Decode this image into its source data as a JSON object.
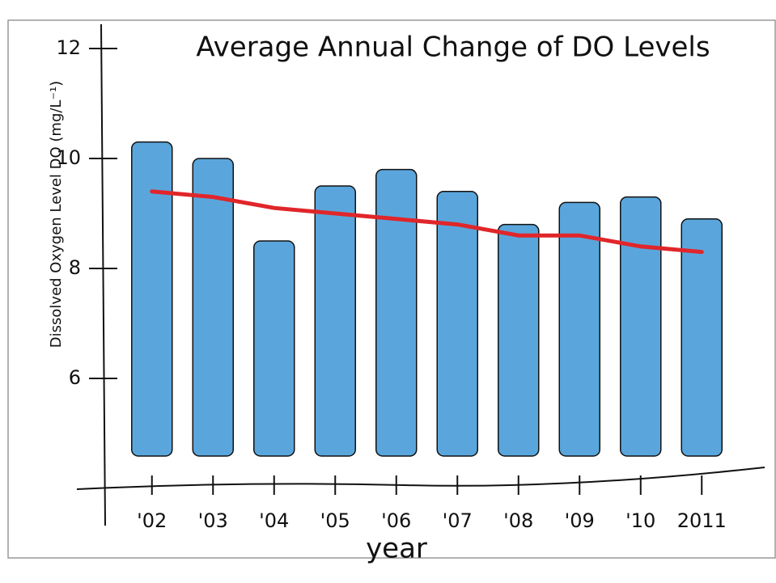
{
  "chart_data": {
    "type": "bar",
    "title": "Average Annual Change of DO Levels",
    "x_label": "year",
    "y_label": "Dissolved Oxygen Level DO (mg/L⁻¹)",
    "categories": [
      "'02",
      "'03",
      "'04",
      "'05",
      "'06",
      "'07",
      "'08",
      "'09",
      "'10",
      "2011"
    ],
    "values": [
      10.3,
      10.0,
      8.5,
      9.5,
      9.8,
      9.4,
      8.8,
      9.2,
      9.3,
      8.9
    ],
    "color": "#5aa6dc",
    "trend": {
      "color": "#e0262a",
      "values": [
        9.4,
        9.3,
        9.1,
        9.0,
        8.9,
        8.8,
        8.6,
        8.6,
        8.4,
        8.3
      ]
    },
    "ylim": [
      4,
      12
    ],
    "yticks": [
      6,
      8,
      10,
      12
    ]
  }
}
